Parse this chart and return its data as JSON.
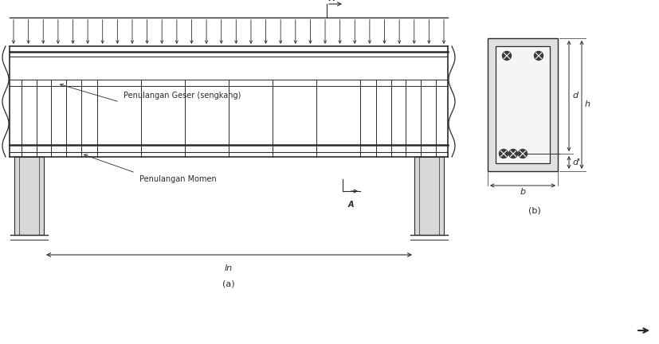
{
  "bg_color": "#ffffff",
  "line_color": "#2a2a2a",
  "fig_width": 8.28,
  "fig_height": 4.32,
  "dpi": 100,
  "label_geser": "Penulangan Geser (sengkang)",
  "label_momen": "Penulangan Momen",
  "label_ln": "ln",
  "label_a": "A",
  "label_b": "b",
  "label_d": "d",
  "label_dp": "d'",
  "label_h": "h",
  "label_fig_a": "(a)",
  "label_fig_b": "(b)"
}
